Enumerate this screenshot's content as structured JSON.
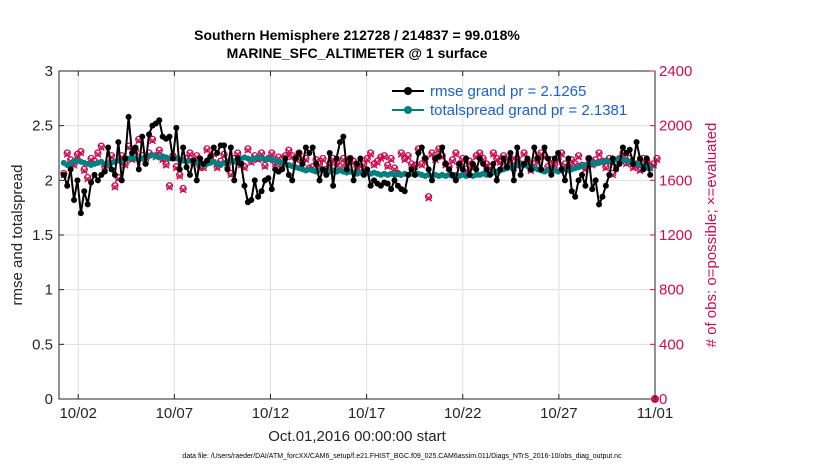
{
  "colors": {
    "rmse": "#000000",
    "totalspread": "#008080",
    "obs": "#cc0d52",
    "axis": "#262626",
    "legend_text": "#1a5fd6",
    "grid": "#dedede"
  },
  "chart_data": {
    "type": "line",
    "title": "Southern Hemisphere 212728 / 214837 = 99.018%",
    "subtitle": "MARINE_SFC_ALTIMETER @ 1 surface",
    "xlabel": "Oct.01,2016 00:00:00 start",
    "ylabel": "rmse and totalspread",
    "ylabel_right": "# of obs: o=possible; ×=evaluated",
    "xlim": [
      0,
      31
    ],
    "ylim": [
      0,
      3
    ],
    "ylim_right": [
      0,
      2400
    ],
    "x_ticks": [
      1,
      6,
      11,
      16,
      21,
      26,
      31
    ],
    "x_tick_labels": [
      "10/02",
      "10/07",
      "10/12",
      "10/17",
      "10/22",
      "10/27",
      "11/01"
    ],
    "y_ticks": [
      0,
      0.5,
      1,
      1.5,
      2,
      2.5,
      3
    ],
    "y_tick_labels": [
      "0",
      "0.5",
      "1",
      "1.5",
      "2",
      "2.5",
      "3"
    ],
    "y_ticks_right": [
      0,
      400,
      800,
      1200,
      1600,
      2000,
      2400
    ],
    "y_tick_labels_right": [
      "0",
      "400",
      "800",
      "1200",
      "1600",
      "2000",
      "2400"
    ],
    "grid": true,
    "legend_placement": "top-right",
    "series": [
      {
        "name": "rmse grand pr = 2.1265",
        "values": [
          2.05,
          1.95,
          2.1,
          1.82,
          2.0,
          1.7,
          1.9,
          1.78,
          1.98,
          2.05,
          2.0,
          2.05,
          2.08,
          2.3,
          2.1,
          2.05,
          2.35,
          2.0,
          2.2,
          2.58,
          2.25,
          2.3,
          2.1,
          2.4,
          2.15,
          2.42,
          2.5,
          2.52,
          2.55,
          2.4,
          2.38,
          2.4,
          2.2,
          2.48,
          2.1,
          2.3,
          2.12,
          2.05,
          2.18,
          2.0,
          2.2,
          2.15,
          2.18,
          2.22,
          2.3,
          2.25,
          2.32,
          2.32,
          2.1,
          2.3,
          2.0,
          2.2,
          2.15,
          1.95,
          1.8,
          1.82,
          2.0,
          1.85,
          1.9,
          2.0,
          2.02,
          1.92,
          2.1,
          2.08,
          2.1,
          2.2,
          2.05,
          2.0,
          2.2,
          2.25,
          2.15,
          2.3,
          2.25,
          2.3,
          2.15,
          2.0,
          2.1,
          2.05,
          2.25,
          1.95,
          2.2,
          2.35,
          2.4,
          2.1,
          2.2,
          2.0,
          2.15,
          2.2,
          2.05,
          2.1,
          1.95,
          2.0,
          1.97,
          1.95,
          1.98,
          1.97,
          1.92,
          2.0,
          1.95,
          1.92,
          1.9,
          2.05,
          2.1,
          2.05,
          2.25,
          2.3,
          2.2,
          2.1,
          2.0,
          2.2,
          2.22,
          2.3,
          2.15,
          2.1,
          2.05,
          2.0,
          2.15,
          2.1,
          2.2,
          2.05,
          2.15,
          2.1,
          2.2,
          2.15,
          2.1,
          2.05,
          2.15,
          2.0,
          2.1,
          2.2,
          2.12,
          2.25,
          2.0,
          2.3,
          2.05,
          2.15,
          2.2,
          2.1,
          2.3,
          2.2,
          2.1,
          2.3,
          2.2,
          2.05,
          2.2,
          2.25,
          2.1,
          2.0,
          2.2,
          1.9,
          1.85,
          2.0,
          2.05,
          1.95,
          2.2,
          1.92,
          2.0,
          1.78,
          1.85,
          1.95,
          2.05,
          2.2,
          2.1,
          2.15,
          2.3,
          2.25,
          2.28,
          2.15,
          2.35,
          2.2,
          2.1,
          2.2,
          2.05
        ]
      },
      {
        "name": "totalspread grand pr = 2.1381",
        "values": [
          2.16,
          2.14,
          2.15,
          2.17,
          2.18,
          2.17,
          2.16,
          2.15,
          2.14,
          2.15,
          2.16,
          2.17,
          2.15,
          2.14,
          2.16,
          2.17,
          2.18,
          2.17,
          2.19,
          2.2,
          2.21,
          2.2,
          2.19,
          2.2,
          2.21,
          2.22,
          2.23,
          2.22,
          2.21,
          2.22,
          2.21,
          2.2,
          2.21,
          2.2,
          2.19,
          2.18,
          2.17,
          2.18,
          2.17,
          2.16,
          2.15,
          2.14,
          2.15,
          2.16,
          2.17,
          2.15,
          2.14,
          2.16,
          2.17,
          2.18,
          2.17,
          2.19,
          2.2,
          2.21,
          2.2,
          2.19,
          2.2,
          2.21,
          2.2,
          2.19,
          2.2,
          2.19,
          2.18,
          2.17,
          2.16,
          2.15,
          2.14,
          2.13,
          2.12,
          2.11,
          2.1,
          2.09,
          2.1,
          2.09,
          2.08,
          2.09,
          2.1,
          2.09,
          2.08,
          2.09,
          2.08,
          2.09,
          2.08,
          2.07,
          2.08,
          2.07,
          2.06,
          2.07,
          2.08,
          2.07,
          2.06,
          2.07,
          2.06,
          2.05,
          2.06,
          2.05,
          2.06,
          2.05,
          2.06,
          2.05,
          2.06,
          2.05,
          2.06,
          2.05,
          2.06,
          2.05,
          2.04,
          2.05,
          2.04,
          2.05,
          2.04,
          2.05,
          2.04,
          2.05,
          2.04,
          2.05,
          2.04,
          2.05,
          2.04,
          2.05,
          2.04,
          2.05,
          2.05,
          2.06,
          2.05,
          2.06,
          2.07,
          2.08,
          2.09,
          2.1,
          2.11,
          2.12,
          2.13,
          2.14,
          2.15,
          2.14,
          2.13,
          2.12,
          2.11,
          2.1,
          2.09,
          2.08,
          2.09,
          2.1,
          2.09,
          2.08,
          2.09,
          2.1,
          2.09,
          2.1,
          2.11,
          2.12,
          2.13,
          2.14,
          2.15,
          2.16,
          2.15,
          2.16,
          2.17,
          2.18,
          2.17,
          2.18,
          2.19,
          2.2,
          2.19,
          2.18,
          2.17,
          2.16,
          2.15,
          2.14,
          2.13,
          2.12,
          2.11
        ]
      }
    ],
    "obs_possible": [
      1650,
      1800,
      1750,
      1720,
      1790,
      1810,
      1680,
      1620,
      1760,
      1740,
      1800,
      1850,
      1700,
      1720,
      1780,
      1560,
      1620,
      1780,
      1720,
      1850,
      1760,
      1820,
      1900,
      1780,
      1750,
      1800,
      1900,
      1780,
      1820,
      1760,
      1720,
      1560,
      1780,
      1700,
      1640,
      1540,
      1760,
      1800,
      1740,
      1780,
      1700,
      1700,
      1830,
      1760,
      1800,
      1700,
      1740,
      1790,
      1720,
      1650,
      1760,
      1800,
      1720,
      1700,
      1830,
      1740,
      1780,
      1760,
      1800,
      1710,
      1760,
      1800,
      1730,
      1770,
      1700,
      1780,
      1820,
      1780,
      1760,
      1800,
      1740,
      1760,
      1690,
      1700,
      1750,
      1720,
      1760,
      1680,
      1720,
      1760,
      1740,
      1700,
      1760,
      1720,
      1760,
      1740,
      1700,
      1680,
      1720,
      1760,
      1800,
      1720,
      1740,
      1770,
      1780,
      1710,
      1760,
      1690,
      1650,
      1800,
      1760,
      1780,
      1720,
      1710,
      1830,
      1720,
      1760,
      1480,
      1800,
      1760,
      1830,
      1780,
      1720,
      1700,
      1750,
      1800,
      1720,
      1760,
      1680,
      1740,
      1700,
      1780,
      1800,
      1760,
      1720,
      1700,
      1800,
      1760,
      1740,
      1780,
      1720,
      1760,
      1700,
      1760,
      1720,
      1800,
      1740,
      1680,
      1720,
      1760,
      1800,
      1780,
      1700,
      1750,
      1720,
      1760,
      1800,
      1720,
      1700,
      1750,
      1720,
      1780,
      1710,
      1690,
      1760,
      1720,
      1750,
      1800,
      1740,
      1700,
      1760,
      1650,
      1720,
      1760,
      1800,
      1730,
      1760,
      1700,
      1720,
      1680,
      1760,
      1740,
      1700,
      1720,
      1760
    ],
    "obs_evaluated": [
      1640,
      1790,
      1740,
      1710,
      1780,
      1800,
      1670,
      1610,
      1750,
      1730,
      1790,
      1840,
      1690,
      1710,
      1770,
      1550,
      1610,
      1770,
      1710,
      1840,
      1750,
      1810,
      1890,
      1770,
      1740,
      1790,
      1890,
      1770,
      1810,
      1750,
      1710,
      1550,
      1770,
      1690,
      1630,
      1530,
      1750,
      1790,
      1730,
      1770,
      1690,
      1690,
      1820,
      1750,
      1790,
      1690,
      1730,
      1780,
      1710,
      1640,
      1750,
      1790,
      1710,
      1690,
      1820,
      1730,
      1770,
      1750,
      1790,
      1700,
      1750,
      1790,
      1720,
      1760,
      1690,
      1770,
      1810,
      1770,
      1750,
      1790,
      1730,
      1750,
      1680,
      1690,
      1740,
      1710,
      1750,
      1670,
      1710,
      1750,
      1730,
      1690,
      1750,
      1710,
      1750,
      1730,
      1690,
      1670,
      1710,
      1750,
      1790,
      1710,
      1730,
      1760,
      1770,
      1700,
      1750,
      1680,
      1640,
      1790,
      1750,
      1770,
      1710,
      1700,
      1820,
      1710,
      1750,
      1470,
      1790,
      1750,
      1820,
      1770,
      1710,
      1690,
      1740,
      1790,
      1710,
      1750,
      1670,
      1730,
      1690,
      1770,
      1790,
      1750,
      1710,
      1690,
      1790,
      1750,
      1730,
      1770,
      1710,
      1750,
      1690,
      1750,
      1710,
      1790,
      1730,
      1670,
      1710,
      1750,
      1790,
      1770,
      1690,
      1740,
      1710,
      1750,
      1790,
      1710,
      1690,
      1740,
      1710,
      1770,
      1700,
      1680,
      1750,
      1710,
      1740,
      1790,
      1730,
      1690,
      1750,
      1640,
      1710,
      1750,
      1790,
      1720,
      1750,
      1690,
      1710,
      1670,
      1750,
      1730,
      1690,
      1710,
      1750
    ],
    "footer": "data file: /Users/raeder/DAI/ATM_forcXX/CAM6_setup/f.e21.FHIST_BGC.f09_025.CAM6assim.011/Diags_NTrS_2016-10/obs_diag_output.nc"
  }
}
